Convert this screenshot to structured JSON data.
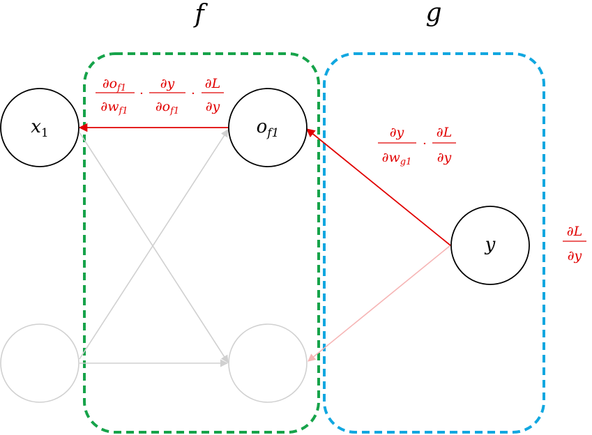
{
  "colors": {
    "f_box": "#16a34a",
    "g_box": "#11a7e0",
    "active_edge": "#e10000",
    "faint_edge_red": "#f6b5b5",
    "inactive": "#d0d0d0",
    "node": "#000000",
    "formula": "#e10000"
  },
  "groups": {
    "f": "f",
    "g": "g"
  },
  "nodes": {
    "x1": {
      "base": "x",
      "sub": "1"
    },
    "of1": {
      "base": "o",
      "sub": "f1"
    },
    "y": {
      "base": "y"
    }
  },
  "formulas": {
    "chain_f": {
      "t1_num": "∂o",
      "t1_num_sub": "f1",
      "t1_den": "∂w",
      "t1_den_sub": "f1",
      "dot": "·",
      "t2_num": "∂y",
      "t2_den": "∂o",
      "t2_den_sub": "f1",
      "t3_num": "∂L",
      "t3_den": "∂y"
    },
    "chain_g": {
      "t1_num": "∂y",
      "t1_den": "∂w",
      "t1_den_sub": "g1",
      "dot": "·",
      "t2_num": "∂L",
      "t2_den": "∂y"
    },
    "loss_grad": {
      "num": "∂L",
      "den": "∂y"
    }
  }
}
